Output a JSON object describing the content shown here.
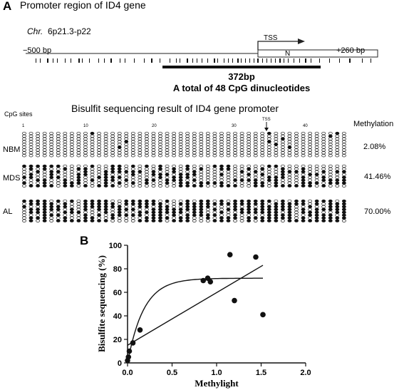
{
  "panel_a": {
    "letter": "A",
    "title": "Promoter region of ID4 gene",
    "chr_prefix": "Chr.",
    "chr_loc": "6p21.3-p22",
    "left_bp": "−500 bp",
    "right_bp": "+260 bp",
    "tss_label": "TSS",
    "n_label": "N",
    "region_length": "372bp",
    "region_desc": "A total of 48 CpG dinucleotides",
    "bisulfite_title": "Bisulfit sequencing result of ID4 gene promoter",
    "cpg_sites_label": "CpG sites",
    "site_numbers": [
      "1",
      "10",
      "20",
      "30",
      "40"
    ],
    "tss_arrow_label": "TSS",
    "methylation_header": "Methylation",
    "groups": [
      {
        "name": "NBM",
        "methylation": "2.08%"
      },
      {
        "name": "MDS",
        "methylation": "41.46%"
      },
      {
        "name": "AL",
        "methylation": "70.00%"
      }
    ]
  },
  "panel_b": {
    "letter": "B",
    "chart_data": {
      "type": "scatter",
      "xlabel": "Methylight",
      "ylabel": "Bisulfite sequencing (%)",
      "xlim": [
        0,
        2.0
      ],
      "ylim": [
        0,
        100
      ],
      "xticks": [
        "0.0",
        "0.5",
        "1.0",
        "1.5",
        "2.0"
      ],
      "yticks": [
        "0",
        "20",
        "40",
        "60",
        "80",
        "100"
      ],
      "points": [
        {
          "x": 0.0,
          "y": 2
        },
        {
          "x": 0.01,
          "y": 5
        },
        {
          "x": 0.02,
          "y": 10
        },
        {
          "x": 0.06,
          "y": 17
        },
        {
          "x": 0.14,
          "y": 28
        },
        {
          "x": 0.85,
          "y": 70
        },
        {
          "x": 0.9,
          "y": 72
        },
        {
          "x": 0.93,
          "y": 69
        },
        {
          "x": 1.15,
          "y": 92
        },
        {
          "x": 1.2,
          "y": 53
        },
        {
          "x": 1.44,
          "y": 90
        },
        {
          "x": 1.52,
          "y": 41
        }
      ],
      "linear_fit": {
        "x": [
          0,
          1.52
        ],
        "y": [
          15,
          83
        ]
      },
      "saturation_fit": {
        "ymax": 72,
        "k": 5.5
      }
    }
  }
}
